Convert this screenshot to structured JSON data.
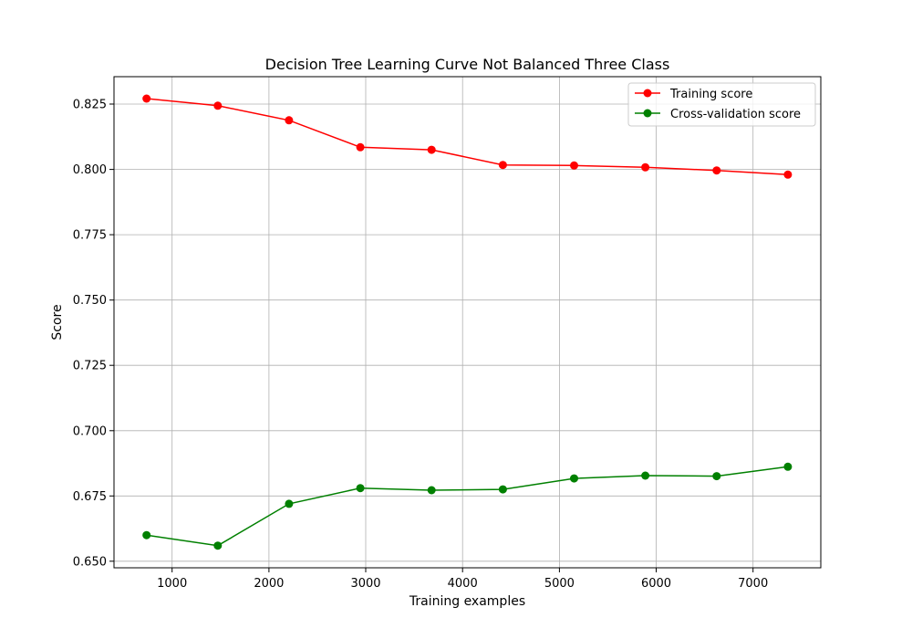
{
  "chart_data": {
    "type": "line",
    "title": "Decision Tree Learning Curve Not Balanced Three Class",
    "xlabel": "Training examples",
    "ylabel": "Score",
    "xlim": [
      400,
      7700
    ],
    "ylim": [
      0.6475,
      0.8355
    ],
    "xticks": [
      1000,
      2000,
      3000,
      4000,
      5000,
      6000,
      7000
    ],
    "yticks": [
      0.65,
      0.675,
      0.7,
      0.725,
      0.75,
      0.775,
      0.8,
      0.825
    ],
    "ytick_labels": [
      "0.650",
      "0.675",
      "0.700",
      "0.725",
      "0.750",
      "0.775",
      "0.800",
      "0.825"
    ],
    "grid": true,
    "legend_position": "top-right",
    "x": [
      736,
      1472,
      2208,
      2944,
      3680,
      4416,
      5152,
      5888,
      6624,
      7360
    ],
    "series": [
      {
        "name": "Training score",
        "color": "#ff0000",
        "values": [
          0.8271,
          0.8244,
          0.8188,
          0.8085,
          0.8075,
          0.8017,
          0.8015,
          0.8008,
          0.7996,
          0.798
        ]
      },
      {
        "name": "Cross-validation score",
        "color": "#008000",
        "values": [
          0.66,
          0.656,
          0.672,
          0.678,
          0.6772,
          0.6775,
          0.6817,
          0.6828,
          0.6826,
          0.6862
        ]
      }
    ]
  }
}
